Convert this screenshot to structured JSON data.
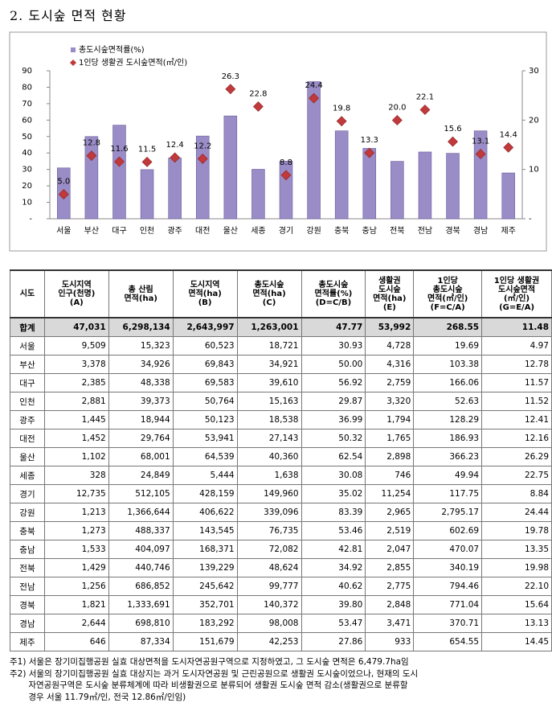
{
  "title": "2. 도시숲 면적 현황",
  "chart_data": {
    "type": "bar",
    "categories": [
      "서울",
      "부산",
      "대구",
      "인천",
      "광주",
      "대전",
      "울산",
      "세종",
      "경기",
      "강원",
      "충북",
      "충남",
      "전북",
      "전남",
      "경북",
      "경남",
      "제주"
    ],
    "series": [
      {
        "name": "총도시숲면적률(%)",
        "type": "bar",
        "color": "#9a8cc6",
        "values": [
          30.93,
          50.0,
          56.92,
          29.87,
          36.99,
          50.32,
          62.54,
          30.08,
          35.02,
          83.39,
          53.46,
          42.81,
          34.92,
          40.62,
          39.8,
          53.47,
          27.86
        ]
      },
      {
        "name": "1인당 생활권 도시숲면적(㎡/인)",
        "type": "scatter",
        "axis": "y2",
        "color": "#c0393b",
        "values": [
          4.97,
          12.78,
          11.57,
          11.52,
          12.41,
          12.16,
          26.29,
          22.75,
          8.84,
          24.44,
          19.78,
          13.35,
          19.98,
          22.1,
          15.64,
          13.13,
          14.45
        ],
        "value_labels": [
          "5.0",
          "12.8",
          "11.6",
          "11.5",
          "12.4",
          "12.2",
          "26.3",
          "22.8",
          "8.8",
          "24.4",
          "19.8",
          "13.3",
          "20.0",
          "22.1",
          "15.6",
          "13.1",
          "14.4"
        ]
      }
    ],
    "ylim": [
      0,
      90
    ],
    "yticks": [
      {
        "value": 0,
        "label": "-"
      },
      10,
      20,
      30,
      40,
      50,
      60,
      70,
      80,
      90
    ],
    "y2lim": [
      0,
      30
    ],
    "y2ticks": [
      {
        "value": 0,
        "label": "-"
      },
      10,
      20,
      30
    ],
    "grid": false,
    "legend": "top-left"
  },
  "table": {
    "header": [
      "시도",
      "도시지역\n인구(천명)\n(A)",
      "총 산림\n면적(ha)",
      "도시지역\n면적(ha)\n(B)",
      "총도시숲\n면적(ha)\n(C)",
      "총도시숲\n면적률(%)\n(D=C/B)",
      "생활권\n도시숲\n면적(ha)\n(E)",
      "1인당\n총도시숲\n면적(㎡/인)\n(F=C/A)",
      "1인당 생활권\n도시숲면적\n(㎡/인)\n(G=E/A)"
    ],
    "rows": [
      [
        "합계",
        "47,031",
        "6,298,134",
        "2,643,997",
        "1,263,001",
        "47.77",
        "53,992",
        "268.55",
        "11.48"
      ],
      [
        "서울",
        "9,509",
        "15,323",
        "60,523",
        "18,721",
        "30.93",
        "4,728",
        "19.69",
        "4.97"
      ],
      [
        "부산",
        "3,378",
        "34,926",
        "69,843",
        "34,921",
        "50.00",
        "4,316",
        "103.38",
        "12.78"
      ],
      [
        "대구",
        "2,385",
        "48,338",
        "69,583",
        "39,610",
        "56.92",
        "2,759",
        "166.06",
        "11.57"
      ],
      [
        "인천",
        "2,881",
        "39,373",
        "50,764",
        "15,163",
        "29.87",
        "3,320",
        "52.63",
        "11.52"
      ],
      [
        "광주",
        "1,445",
        "18,944",
        "50,123",
        "18,538",
        "36.99",
        "1,794",
        "128.29",
        "12.41"
      ],
      [
        "대전",
        "1,452",
        "29,764",
        "53,941",
        "27,143",
        "50.32",
        "1,765",
        "186.93",
        "12.16"
      ],
      [
        "울산",
        "1,102",
        "68,001",
        "64,539",
        "40,360",
        "62.54",
        "2,898",
        "366.23",
        "26.29"
      ],
      [
        "세종",
        "328",
        "24,849",
        "5,444",
        "1,638",
        "30.08",
        "746",
        "49.94",
        "22.75"
      ],
      [
        "경기",
        "12,735",
        "512,105",
        "428,159",
        "149,960",
        "35.02",
        "11,254",
        "117.75",
        "8.84"
      ],
      [
        "강원",
        "1,213",
        "1,366,644",
        "406,622",
        "339,096",
        "83.39",
        "2,965",
        "2,795.17",
        "24.44"
      ],
      [
        "충북",
        "1,273",
        "488,337",
        "143,545",
        "76,735",
        "53.46",
        "2,519",
        "602.69",
        "19.78"
      ],
      [
        "충남",
        "1,533",
        "404,097",
        "168,371",
        "72,082",
        "42.81",
        "2,047",
        "470.07",
        "13.35"
      ],
      [
        "전북",
        "1,429",
        "440,746",
        "139,229",
        "48,624",
        "34.92",
        "2,855",
        "340.19",
        "19.98"
      ],
      [
        "전남",
        "1,256",
        "686,852",
        "245,642",
        "99,777",
        "40.62",
        "2,775",
        "794.46",
        "22.10"
      ],
      [
        "경북",
        "1,821",
        "1,333,691",
        "352,701",
        "140,372",
        "39.80",
        "2,848",
        "771.04",
        "15.64"
      ],
      [
        "경남",
        "2,644",
        "698,810",
        "183,292",
        "98,008",
        "53.47",
        "3,471",
        "370.71",
        "13.13"
      ],
      [
        "제주",
        "646",
        "87,334",
        "151,679",
        "42,253",
        "27.86",
        "933",
        "654.55",
        "14.45"
      ]
    ]
  },
  "notes": [
    "주1) 서울은 장기미집행공원 실효 대상면적을 도시자연공원구역으로 지정하였고, 그 도시숲 면적은 6,479.7ha임",
    "주2) 서울의 장기미집행공원 실효 대상지는 과거 도시자연공원 및 근린공원으로 생활권 도시숲이었으나, 현재의 도시",
    "       자연공원구역은 도시숲 분류체계에 따라 비생활권으로 분류되어 생활권 도시숲 면적 감소(생활권으로 분류할",
    "       경우 서울 11.79㎡/인, 전국 12.86㎡/인임)"
  ]
}
